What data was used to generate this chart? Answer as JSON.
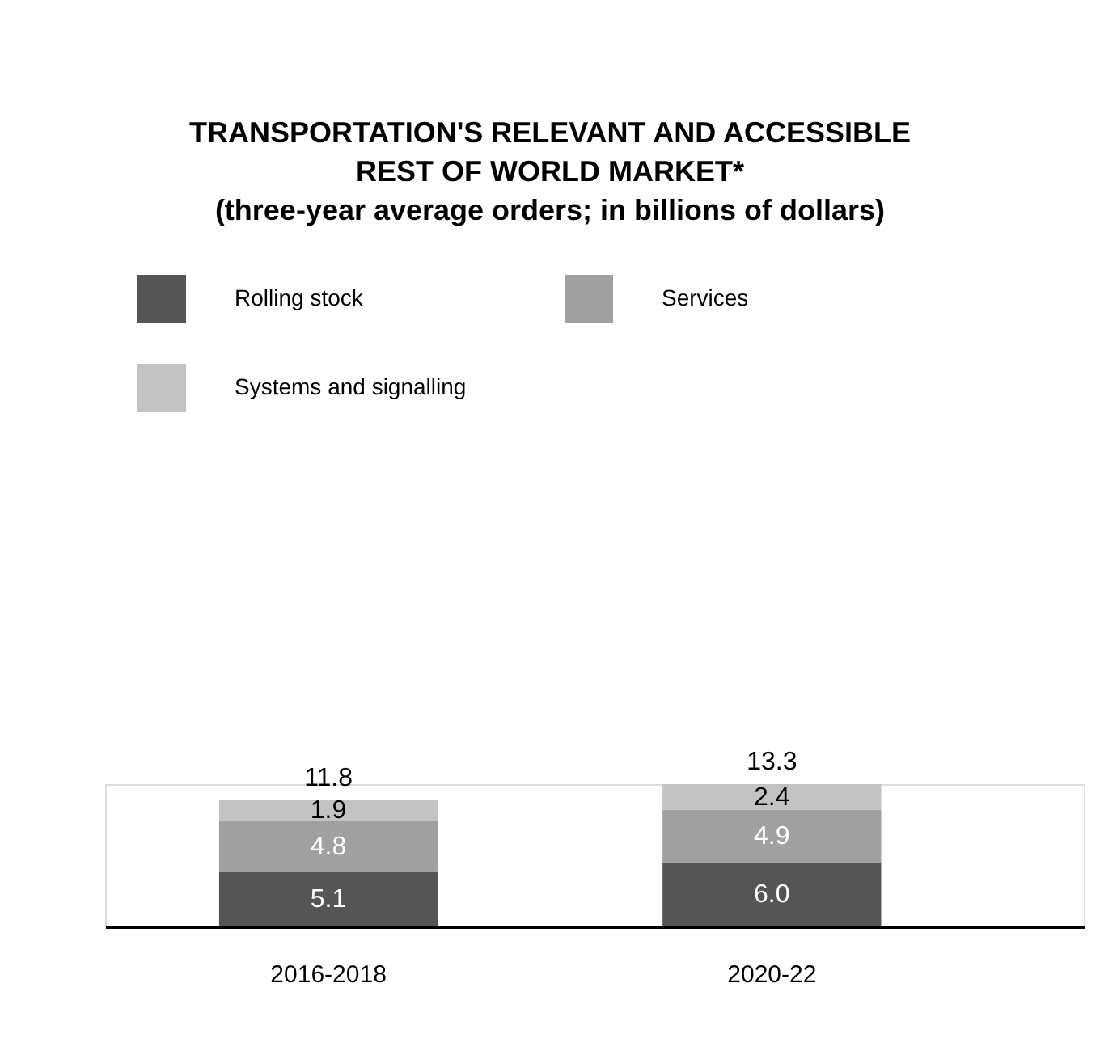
{
  "chart_data": {
    "type": "bar",
    "stacked": true,
    "title": "TRANSPORTATION'S RELEVANT AND ACCESSIBLE REST OF WORLD MARKET*",
    "subtitle": "(three-year average orders; in billions of dollars)",
    "categories": [
      "2016-2018",
      "2020-22"
    ],
    "series": [
      {
        "name": "Rolling stock",
        "color": "#555555",
        "values": [
          5.1,
          6.0
        ],
        "value_labels": [
          "5.1",
          "6.0"
        ]
      },
      {
        "name": "Services",
        "color": "#a0a0a0",
        "values": [
          4.8,
          4.9
        ],
        "value_labels": [
          "4.8",
          "4.9"
        ]
      },
      {
        "name": "Systems and signalling",
        "color": "#c3c3c3",
        "values": [
          1.9,
          2.4
        ],
        "value_labels": [
          "1.9",
          "2.4"
        ]
      }
    ],
    "totals": [
      "11.8",
      "13.3"
    ],
    "legend": "top left",
    "grid": false
  }
}
